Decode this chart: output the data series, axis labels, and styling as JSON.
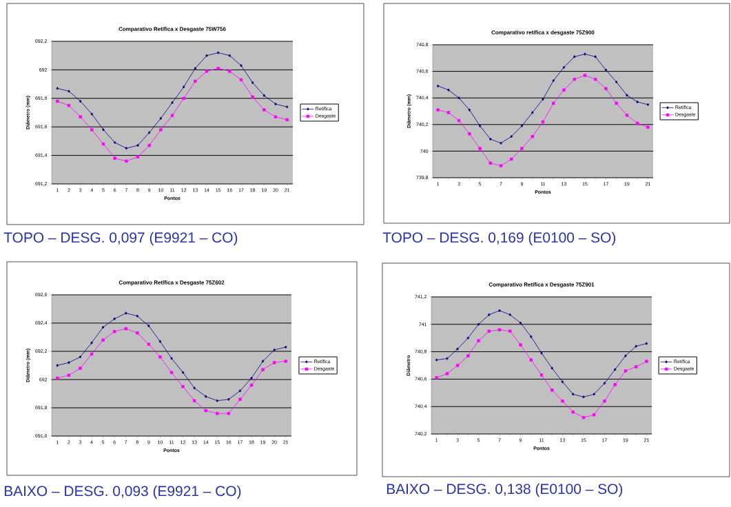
{
  "chart_data": [
    {
      "type": "line",
      "title": "Comparativo Retífica x Desgaste 75W756",
      "xlabel": "Pontos",
      "ylabel": "Diâmetro (mm)",
      "categories": [
        "1",
        "2",
        "3",
        "4",
        "5",
        "6",
        "7",
        "8",
        "9",
        "10",
        "11",
        "12",
        "13",
        "14",
        "15",
        "16",
        "17",
        "18",
        "19",
        "20",
        "21"
      ],
      "series": [
        {
          "name": "Retífica",
          "color": "#000080",
          "marker": "diamond",
          "values": [
            691.87,
            691.85,
            691.78,
            691.69,
            691.58,
            691.49,
            691.45,
            691.47,
            691.56,
            691.66,
            691.77,
            691.88,
            692.01,
            692.1,
            692.12,
            692.1,
            692.03,
            691.91,
            691.82,
            691.76,
            691.74
          ]
        },
        {
          "name": "Desgaste",
          "color": "#ff00ff",
          "marker": "square",
          "values": [
            691.78,
            691.75,
            691.67,
            691.58,
            691.48,
            691.38,
            691.36,
            691.39,
            691.47,
            691.58,
            691.68,
            691.8,
            691.92,
            691.99,
            692.01,
            691.99,
            691.93,
            691.81,
            691.72,
            691.67,
            691.65
          ]
        }
      ],
      "ylim": [
        691.2,
        692.2
      ],
      "yticks": [
        {
          "value": 691.2,
          "label": "691,2"
        },
        {
          "value": 691.4,
          "label": "691,4"
        },
        {
          "value": 691.6,
          "label": "691,6"
        },
        {
          "value": 691.8,
          "label": "691,8"
        },
        692,
        {
          "value": 692.2,
          "label": "692,2"
        }
      ],
      "grid": "y",
      "legend": "right",
      "annotations": [
        "TOPO – DESG. 0,097 (E9921 – CO)"
      ]
    },
    {
      "type": "line",
      "title": "Comparativo retífica x desgaste 75Z900",
      "xlabel": "Pontos",
      "ylabel": "Diâmetro (mm)",
      "categories": [
        "1",
        null,
        "3",
        null,
        "5",
        null,
        "7",
        null,
        "9",
        null,
        "11",
        null,
        "13",
        null,
        "15",
        null,
        "17",
        null,
        "19",
        null,
        "21"
      ],
      "series": [
        {
          "name": "Retífica",
          "color": "#000080",
          "marker": "diamond",
          "values": [
            740.49,
            740.46,
            740.4,
            740.31,
            740.19,
            740.09,
            740.06,
            740.11,
            740.19,
            740.29,
            740.39,
            740.53,
            740.63,
            740.71,
            740.73,
            740.71,
            740.61,
            740.52,
            740.42,
            740.37,
            740.35
          ]
        },
        {
          "name": "Desgaste",
          "color": "#ff00ff",
          "marker": "square",
          "values": [
            740.31,
            740.29,
            740.23,
            740.13,
            740.02,
            739.91,
            739.89,
            739.94,
            740.02,
            740.11,
            740.22,
            740.36,
            740.46,
            740.54,
            740.57,
            740.54,
            740.47,
            740.36,
            740.27,
            740.21,
            740.18
          ]
        }
      ],
      "ylim": [
        739.8,
        740.8
      ],
      "yticks": [
        {
          "value": 739.8,
          "label": "739,8"
        },
        740,
        {
          "value": 740.2,
          "label": "740,2"
        },
        {
          "value": 740.4,
          "label": "740,4"
        },
        {
          "value": 740.6,
          "label": "740,6"
        },
        {
          "value": 740.8,
          "label": "740,8"
        }
      ],
      "grid": "y",
      "legend": "right",
      "annotations": [
        "TOPO – DESG. 0,169 (E0100 – SO)"
      ]
    },
    {
      "type": "line",
      "title": "Comparativo Retífica x Desgaste 75Z602",
      "xlabel": "Pontos",
      "ylabel": "Diâmetro (mm)",
      "categories": [
        "1",
        "2",
        "3",
        "4",
        "5",
        "6",
        "7",
        "8",
        "9",
        "10",
        "11",
        "12",
        "13",
        "14",
        "15",
        "16",
        "17",
        "18",
        "19",
        "20",
        "21"
      ],
      "series": [
        {
          "name": "Retífica",
          "color": "#000080",
          "marker": "diamond",
          "values": [
            692.1,
            692.12,
            692.16,
            692.26,
            692.37,
            692.43,
            692.47,
            692.45,
            692.38,
            692.27,
            692.15,
            692.05,
            691.94,
            691.88,
            691.85,
            691.86,
            691.92,
            692.01,
            692.13,
            692.21,
            692.23
          ]
        },
        {
          "name": "Desgaste",
          "color": "#ff00ff",
          "marker": "square",
          "values": [
            692.01,
            692.03,
            692.08,
            692.18,
            692.28,
            692.34,
            692.36,
            692.33,
            692.25,
            692.16,
            692.05,
            691.95,
            691.85,
            691.78,
            691.76,
            691.76,
            691.86,
            691.96,
            692.07,
            692.12,
            692.13
          ]
        }
      ],
      "ylim": [
        691.6,
        692.6
      ],
      "yticks": [
        {
          "value": 691.6,
          "label": "691,6"
        },
        {
          "value": 691.8,
          "label": "691,8"
        },
        692,
        {
          "value": 692.2,
          "label": "692,2"
        },
        {
          "value": 692.4,
          "label": "692,4"
        },
        {
          "value": 692.6,
          "label": "692,6"
        }
      ],
      "grid": "y",
      "legend": "right",
      "annotations": [
        "BAIXO – DESG. 0,093 (E9921 – CO)"
      ]
    },
    {
      "type": "line",
      "title": "Comparativo Retífica x Desgaste 75Z901",
      "xlabel": "Pontos",
      "ylabel": "Diâmetro",
      "categories": [
        "1",
        null,
        "3",
        null,
        "5",
        null,
        "7",
        null,
        "9",
        null,
        "11",
        null,
        "13",
        null,
        "15",
        null,
        "17",
        null,
        "19",
        null,
        "21"
      ],
      "series": [
        {
          "name": "Retífica",
          "color": "#000080",
          "marker": "diamond",
          "values": [
            740.74,
            740.75,
            740.82,
            740.9,
            741.0,
            741.07,
            741.1,
            741.07,
            741.01,
            740.91,
            740.79,
            740.68,
            740.58,
            740.49,
            740.47,
            740.49,
            740.57,
            740.67,
            740.77,
            740.84,
            740.86
          ]
        },
        {
          "name": "Desgaste",
          "color": "#ff00ff",
          "marker": "square",
          "values": [
            740.61,
            740.64,
            740.7,
            740.77,
            740.88,
            740.95,
            740.96,
            740.95,
            740.85,
            740.74,
            740.63,
            740.52,
            740.44,
            740.36,
            740.32,
            740.34,
            740.44,
            740.56,
            740.66,
            740.69,
            740.73
          ]
        }
      ],
      "ylim": [
        740.2,
        741.2
      ],
      "yticks": [
        {
          "value": 740.2,
          "label": "740,2"
        },
        {
          "value": 740.4,
          "label": "740,4"
        },
        {
          "value": 740.6,
          "label": "740,6"
        },
        {
          "value": 740.8,
          "label": "740,8"
        },
        741,
        {
          "value": 741.2,
          "label": "741,2"
        }
      ],
      "grid": "y",
      "legend": "right",
      "annotations": [
        "BAIXO – DESG. 0,138 (E0100 – SO)"
      ]
    }
  ]
}
